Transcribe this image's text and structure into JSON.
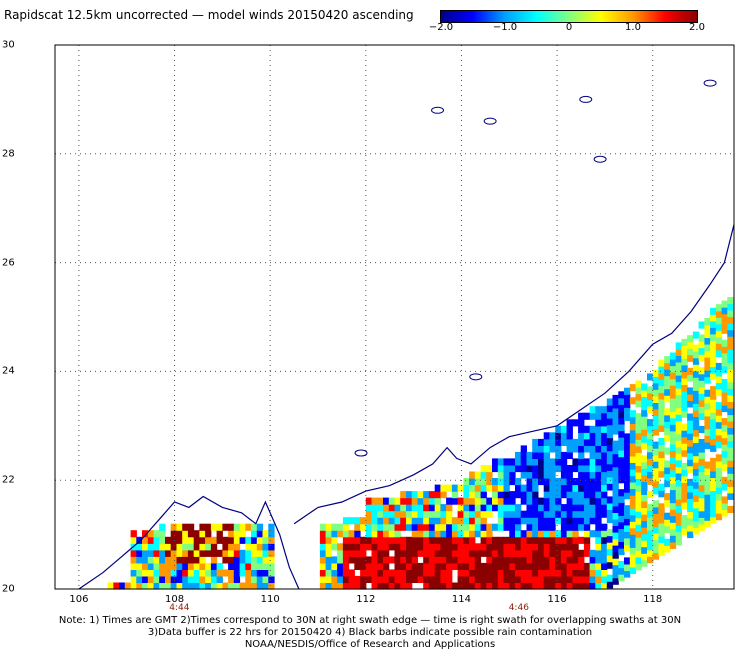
{
  "title": "Rapidscat 12.5km uncorrected — model winds 20150420 ascending",
  "colorbar": {
    "ticks": [
      "−2.0",
      "−1.0",
      "0",
      "1.0",
      "2.0"
    ],
    "tick_values": [
      -2,
      -1,
      0,
      1,
      2
    ],
    "range": [
      -2,
      2
    ],
    "colors": [
      "#00008b",
      "#0000ff",
      "#00a0ff",
      "#00ffff",
      "#80ff80",
      "#ffff00",
      "#ff9900",
      "#ff0000",
      "#8b0000"
    ]
  },
  "map": {
    "lon_range": [
      105.5,
      119.7
    ],
    "lat_range": [
      20.0,
      30.0
    ],
    "lon_ticks": [
      "106",
      "108",
      "110",
      "112",
      "114",
      "116",
      "118"
    ],
    "lon_tick_values": [
      106,
      108,
      110,
      112,
      114,
      116,
      118
    ],
    "lat_ticks": [
      "20",
      "22",
      "24",
      "26",
      "28",
      "30"
    ],
    "lat_tick_values": [
      20,
      22,
      24,
      26,
      28,
      30
    ],
    "grid": "dotted",
    "coastline_color": "#000080"
  },
  "swath_times": [
    {
      "label": "4:44",
      "lon": 108.1
    },
    {
      "label": "4:46",
      "lon": 115.2
    }
  ],
  "notes": [
    "Note: 1) Times are GMT 2)Times correspond to 30N at right swath edge — time is right swath for overlapping swaths at 30N",
    "3)Data buffer is 22 hrs for 20150420 4) Black barbs indicate possible rain contamination",
    "NOAA/NESDIS/Office of Research and Applications"
  ]
}
